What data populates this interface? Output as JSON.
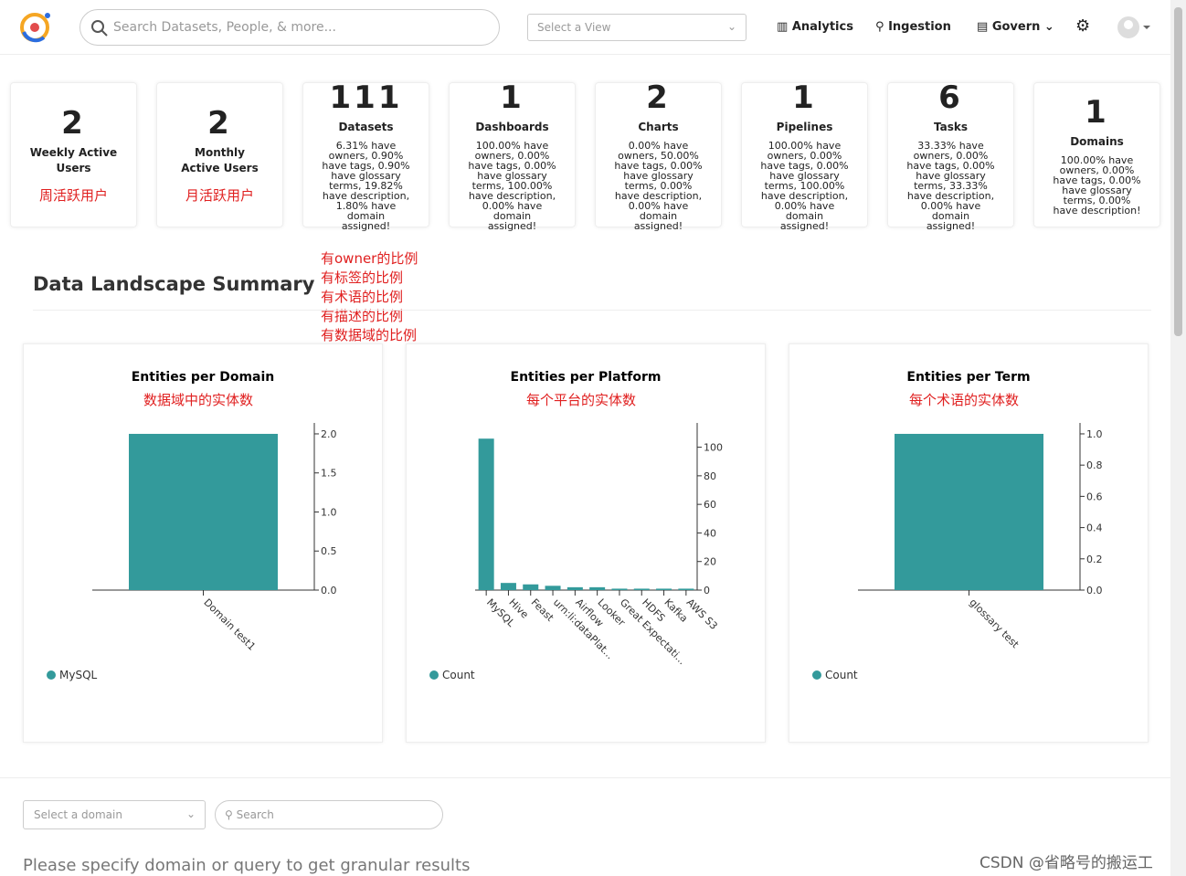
{
  "header": {
    "search_placeholder": "Search Datasets, People, & more...",
    "view_select": "Select a View",
    "nav": [
      "Analytics",
      "Ingestion",
      "Govern"
    ]
  },
  "stats": [
    {
      "value": 2,
      "label": "Weekly Active Users",
      "note": "周活跃用户"
    },
    {
      "value": 2,
      "label": "Monthly Active Users",
      "note": "月活跃用户"
    },
    {
      "value": 111,
      "label": "Datasets",
      "description": "6.31% have owners, 0.90% have tags, 0.90% have glossary terms, 19.82% have description, 1.80% have domain assigned!"
    },
    {
      "value": 1,
      "label": "Dashboards",
      "description": "100.00% have owners, 0.00% have tags, 0.00% have glossary terms, 100.00% have description, 0.00% have domain assigned!"
    },
    {
      "value": 2,
      "label": "Charts",
      "description": "0.00% have owners, 50.00% have tags, 0.00% have glossary terms, 0.00% have description, 0.00% have domain assigned!"
    },
    {
      "value": 1,
      "label": "Pipelines",
      "description": "100.00% have owners, 0.00% have tags, 0.00% have glossary terms, 100.00% have description, 0.00% have domain assigned!"
    },
    {
      "value": 6,
      "label": "Tasks",
      "description": "33.33% have owners, 0.00% have tags, 0.00% have glossary terms, 33.33% have description, 0.00% have domain assigned!"
    },
    {
      "value": 1,
      "label": "Domains",
      "description": "100.00% have owners, 0.00% have tags, 0.00% have glossary terms, 0.00% have description!"
    }
  ],
  "stats_annotations": [
    "有owner的比例",
    "有标签的比例",
    "有术语的比例",
    "有描述的比例",
    "有数据域的比例"
  ],
  "section_title": "Data Landscape Summary",
  "charts": [
    {
      "type": "bar",
      "title": "Entities per Domain",
      "annotation": "数据域中的实体数",
      "categories": [
        "Domain test1"
      ],
      "series": [
        {
          "name": "MySQL",
          "color": "#339a9b",
          "values": [
            2
          ]
        }
      ],
      "ylim": [
        0,
        2.14
      ],
      "yticks": [
        {
          "value": 0,
          "label": "0.0"
        },
        {
          "value": 0.5,
          "label": "0.5"
        },
        {
          "value": 1,
          "label": "1.0"
        },
        {
          "value": 1.5,
          "label": "1.5"
        },
        {
          "value": 2,
          "label": "2.0"
        }
      ]
    },
    {
      "type": "bar",
      "title": "Entities per Platform",
      "annotation": "每个平台的实体数",
      "categories": [
        "MySQL",
        "Hive",
        "Feast",
        "urn:li:dataPlat...",
        "Airflow",
        "Looker",
        "Great Expectati...",
        "HDFS",
        "Kafka",
        "AWS S3"
      ],
      "series": [
        {
          "name": "Count",
          "color": "#339a9b",
          "values": [
            106,
            5,
            4,
            3,
            2,
            2,
            1,
            1,
            1,
            1
          ]
        }
      ],
      "ylim": [
        0,
        117
      ],
      "yticks": [
        0,
        20,
        40,
        60,
        80,
        100
      ]
    },
    {
      "type": "bar",
      "title": "Entities per Term",
      "annotation": "每个术语的实体数",
      "categories": [
        "glossary test"
      ],
      "series": [
        {
          "name": "Count",
          "color": "#339a9b",
          "values": [
            1
          ]
        }
      ],
      "ylim": [
        0,
        1.07
      ],
      "yticks": [
        {
          "value": 0,
          "label": "0.0"
        },
        {
          "value": 0.2,
          "label": "0.2"
        },
        {
          "value": 0.4,
          "label": "0.4"
        },
        {
          "value": 0.6,
          "label": "0.6"
        },
        {
          "value": 0.8,
          "label": "0.8"
        },
        {
          "value": 1,
          "label": "1.0"
        }
      ]
    }
  ],
  "filters": {
    "domain_placeholder": "Select a domain",
    "search_placeholder": "Search",
    "hint": "Please specify domain or query to get granular results"
  },
  "watermark": "CSDN @省略号的搬运工"
}
